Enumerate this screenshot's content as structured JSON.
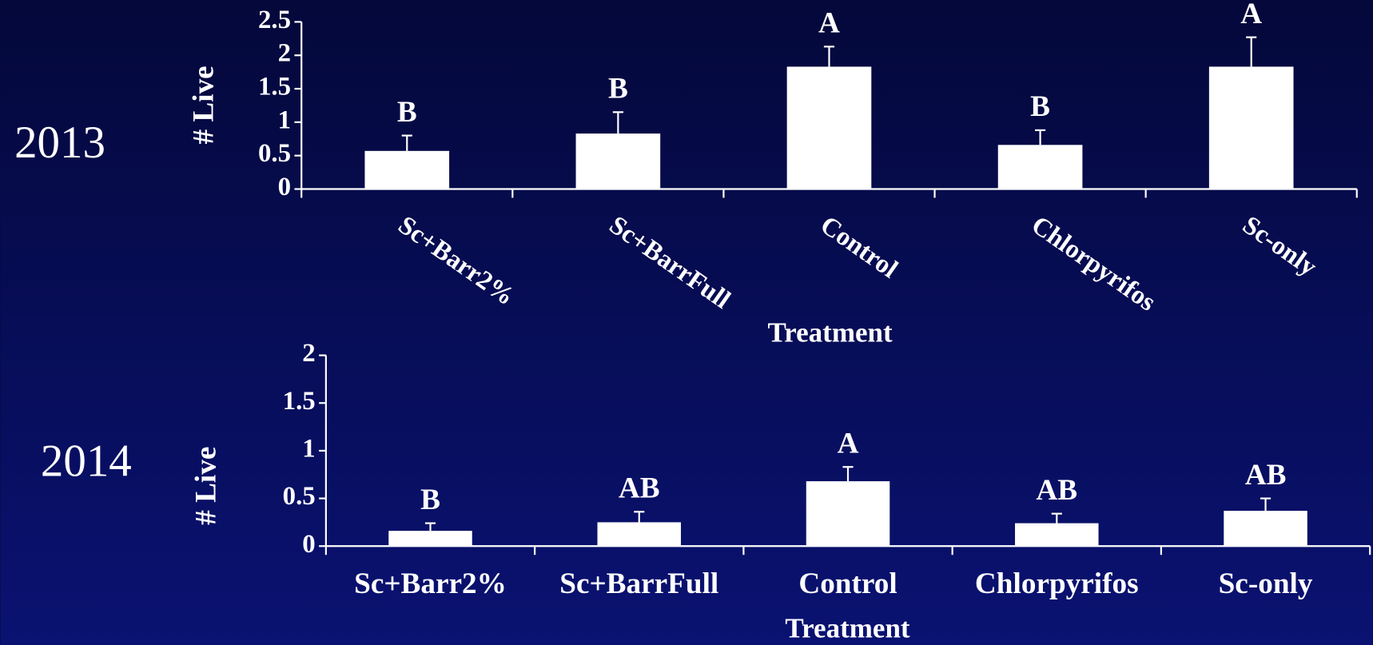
{
  "chart_data": [
    {
      "type": "bar",
      "title": "2013",
      "ylabel": "# Live",
      "xlabel": "Treatment",
      "categories": [
        "Sc+Barr2%",
        "Sc+BarrFull",
        "Control",
        "Chlorpyrifos",
        "Sc-only"
      ],
      "values": [
        0.57,
        0.83,
        1.83,
        0.66,
        1.83
      ],
      "errors": [
        0.23,
        0.32,
        0.3,
        0.22,
        0.44
      ],
      "annotations": [
        "B",
        "B",
        "A",
        "B",
        "A"
      ],
      "color": "#ffffff",
      "ylim": [
        0,
        2.5
      ],
      "yticks": [
        0,
        0.5,
        1,
        1.5,
        2,
        2.5
      ]
    },
    {
      "type": "bar",
      "title": "2014",
      "ylabel": "# Live",
      "xlabel": "Treatment",
      "categories": [
        "Sc+Barr2%",
        "Sc+BarrFull",
        "Control",
        "Chlorpyrifos",
        "Sc-only"
      ],
      "values": [
        0.16,
        0.25,
        0.68,
        0.24,
        0.37
      ],
      "errors": [
        0.08,
        0.11,
        0.15,
        0.1,
        0.13
      ],
      "annotations": [
        "B",
        "AB",
        "A",
        "AB",
        "AB"
      ],
      "color": "#ffffff",
      "ylim": [
        0,
        2
      ],
      "yticks": [
        0,
        0.5,
        1,
        1.5,
        2
      ]
    }
  ]
}
